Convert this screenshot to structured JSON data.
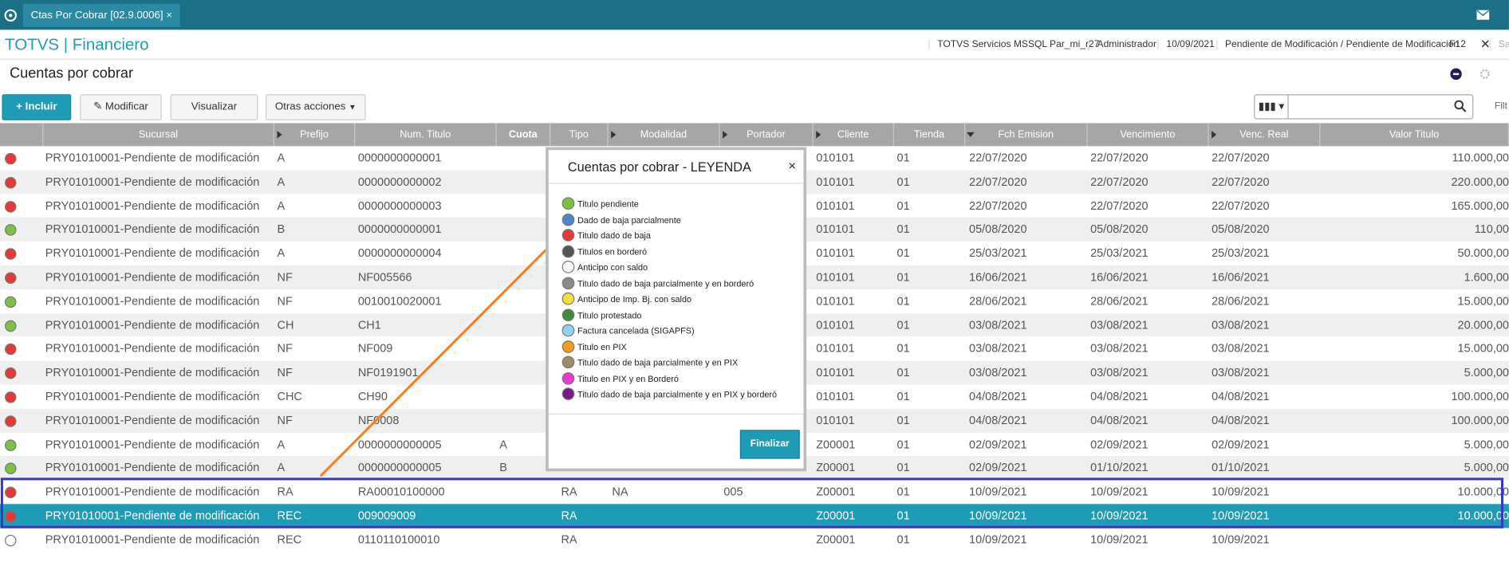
{
  "tab": {
    "title": "Ctas Por Cobrar [02.9.0006]"
  },
  "header": {
    "title": "TOTVS | Financiero",
    "status": [
      "TOTVS Servicios MSSQL Par_mi_r27",
      "Administrador",
      "10/09/2021",
      "Pendiente de Modificación / Pendiente de Modificación",
      "F12",
      "Sai"
    ]
  },
  "page": {
    "title": "Cuentas por cobrar"
  },
  "toolbar": {
    "buttons": [
      "Incluir",
      "Modificar",
      "Visualizar",
      "Otras acciones"
    ],
    "filter": "Filt"
  },
  "table": {
    "columns": [
      "Sucursal",
      "Prefijo",
      "Num. Titulo",
      "Cuota",
      "Tipo",
      "Modalidad",
      "Portador",
      "Cliente",
      "Tienda",
      "Fch Emision",
      "Vencimiento",
      "Venc. Real",
      "Valor Titulo"
    ],
    "rows": [
      {
        "status": "red",
        "sucursal": "PRY01010001-Pendiente de modificación",
        "prefijo": "A",
        "num": "0000000000001",
        "cliente": "010101",
        "tienda": "01",
        "emision": "22/07/2020",
        "venc": "22/07/2020",
        "real": "22/07/2020",
        "valor": "110.000,00"
      },
      {
        "status": "red",
        "sucursal": "PRY01010001-Pendiente de modificación",
        "prefijo": "A",
        "num": "0000000000002",
        "cliente": "010101",
        "tienda": "01",
        "emision": "22/07/2020",
        "venc": "22/07/2020",
        "real": "22/07/2020",
        "valor": "220.000,00"
      },
      {
        "status": "red",
        "sucursal": "PRY01010001-Pendiente de modificación",
        "prefijo": "A",
        "num": "0000000000003",
        "cliente": "010101",
        "tienda": "01",
        "emision": "22/07/2020",
        "venc": "22/07/2020",
        "real": "22/07/2020",
        "valor": "165.000,00"
      },
      {
        "status": "green",
        "sucursal": "PRY01010001-Pendiente de modificación",
        "prefijo": "B",
        "num": "0000000000001",
        "cliente": "010101",
        "tienda": "01",
        "emision": "05/08/2020",
        "venc": "05/08/2020",
        "real": "05/08/2020",
        "valor": "110,00"
      },
      {
        "status": "red",
        "sucursal": "PRY01010001-Pendiente de modificación",
        "prefijo": "A",
        "num": "0000000000004",
        "cliente": "010101",
        "tienda": "01",
        "emision": "25/03/2021",
        "venc": "25/03/2021",
        "real": "25/03/2021",
        "valor": "50.000,00"
      },
      {
        "status": "red",
        "sucursal": "PRY01010001-Pendiente de modificación",
        "prefijo": "NF",
        "num": "NF005566",
        "cliente": "010101",
        "tienda": "01",
        "emision": "16/06/2021",
        "venc": "16/06/2021",
        "real": "16/06/2021",
        "valor": "1.600,00"
      },
      {
        "status": "green",
        "sucursal": "PRY01010001-Pendiente de modificación",
        "prefijo": "NF",
        "num": "0010010020001",
        "cliente": "010101",
        "tienda": "01",
        "emision": "28/06/2021",
        "venc": "28/06/2021",
        "real": "28/06/2021",
        "valor": "15.000,00"
      },
      {
        "status": "green",
        "sucursal": "PRY01010001-Pendiente de modificación",
        "prefijo": "CH",
        "num": "CH1",
        "cliente": "010101",
        "tienda": "01",
        "emision": "03/08/2021",
        "venc": "03/08/2021",
        "real": "03/08/2021",
        "valor": "20.000,00"
      },
      {
        "status": "red",
        "sucursal": "PRY01010001-Pendiente de modificación",
        "prefijo": "NF",
        "num": "NF009",
        "cliente": "010101",
        "tienda": "01",
        "emision": "03/08/2021",
        "venc": "03/08/2021",
        "real": "03/08/2021",
        "valor": "15.000,00"
      },
      {
        "status": "red",
        "sucursal": "PRY01010001-Pendiente de modificación",
        "prefijo": "NF",
        "num": "NF0191901",
        "cliente": "010101",
        "tienda": "01",
        "emision": "03/08/2021",
        "venc": "03/08/2021",
        "real": "03/08/2021",
        "valor": "5.000,00"
      },
      {
        "status": "red",
        "sucursal": "PRY01010001-Pendiente de modificación",
        "prefijo": "CHC",
        "num": "CH90",
        "cliente": "010101",
        "tienda": "01",
        "emision": "04/08/2021",
        "venc": "04/08/2021",
        "real": "04/08/2021",
        "valor": "100.000,00"
      },
      {
        "status": "red",
        "sucursal": "PRY01010001-Pendiente de modificación",
        "prefijo": "NF",
        "num": "NF0008",
        "cliente": "010101",
        "tienda": "01",
        "emision": "04/08/2021",
        "venc": "04/08/2021",
        "real": "04/08/2021",
        "valor": "100.000,00"
      },
      {
        "status": "green",
        "sucursal": "PRY01010001-Pendiente de modificación",
        "prefijo": "A",
        "num": "0000000000005",
        "cuota": "A",
        "cliente": "Z00001",
        "tienda": "01",
        "emision": "02/09/2021",
        "venc": "02/09/2021",
        "real": "02/09/2021",
        "valor": "5.000,00"
      },
      {
        "status": "green",
        "sucursal": "PRY01010001-Pendiente de modificación",
        "prefijo": "A",
        "num": "0000000000005",
        "cuota": "B",
        "cliente": "Z00001",
        "tienda": "01",
        "emision": "02/09/2021",
        "venc": "01/10/2021",
        "real": "01/10/2021",
        "valor": "5.000,00"
      },
      {
        "status": "red",
        "sucursal": "PRY01010001-Pendiente de modificación",
        "prefijo": "RA",
        "num": "RA00010100000",
        "tipo": "RA",
        "modalidad": "NA",
        "portador": "005",
        "cliente": "Z00001",
        "tienda": "01",
        "emision": "10/09/2021",
        "venc": "10/09/2021",
        "real": "10/09/2021",
        "valor": "10.000,00"
      },
      {
        "status": "red",
        "selected": true,
        "sucursal": "PRY01010001-Pendiente de modificación",
        "prefijo": "REC",
        "num": "009009009",
        "tipo": "RA",
        "cliente": "Z00001",
        "tienda": "01",
        "emision": "10/09/2021",
        "venc": "10/09/2021",
        "real": "10/09/2021",
        "valor": "10.000,00"
      },
      {
        "status": "white",
        "sucursal": "PRY01010001-Pendiente de modificación",
        "prefijo": "REC",
        "num": "0110110100010",
        "tipo": "RA",
        "cliente": "Z00001",
        "tienda": "01",
        "emision": "10/09/2021",
        "venc": "10/09/2021",
        "real": "10/09/2021"
      }
    ]
  },
  "legend": {
    "title": "Cuentas por cobrar - LEYENDA",
    "button": "Finalizar",
    "items": [
      {
        "label": "Titulo pendiente",
        "color": "#7cc242"
      },
      {
        "label": "Dado de baja parcialmente",
        "color": "#4a86c8"
      },
      {
        "label": "Titulo dado de baja",
        "color": "#e53935"
      },
      {
        "label": "Titulos en borderó",
        "color": "#555555"
      },
      {
        "label": "Anticipo con saldo",
        "color": "#ffffff"
      },
      {
        "label": "Titulo dado de baja parcialmente y en borderó",
        "color": "#8a8a8a"
      },
      {
        "label": "Anticipo de Imp. Bj. con saldo",
        "color": "#f2e13a"
      },
      {
        "label": "Titulo protestado",
        "color": "#3f8a3f"
      },
      {
        "label": "Factura cancelada (SIGAPFS)",
        "color": "#8fd3f0"
      },
      {
        "label": "Titulo en PIX",
        "color": "#f39c1e"
      },
      {
        "label": "Titulo dado de baja parcialmente y en PIX",
        "color": "#a08a6a"
      },
      {
        "label": "Titulo en PIX y en Borderó",
        "color": "#e83ad0"
      },
      {
        "label": "Titulo dado de baja parcialmente y en PIX y borderó",
        "color": "#7a1a8a"
      }
    ]
  }
}
